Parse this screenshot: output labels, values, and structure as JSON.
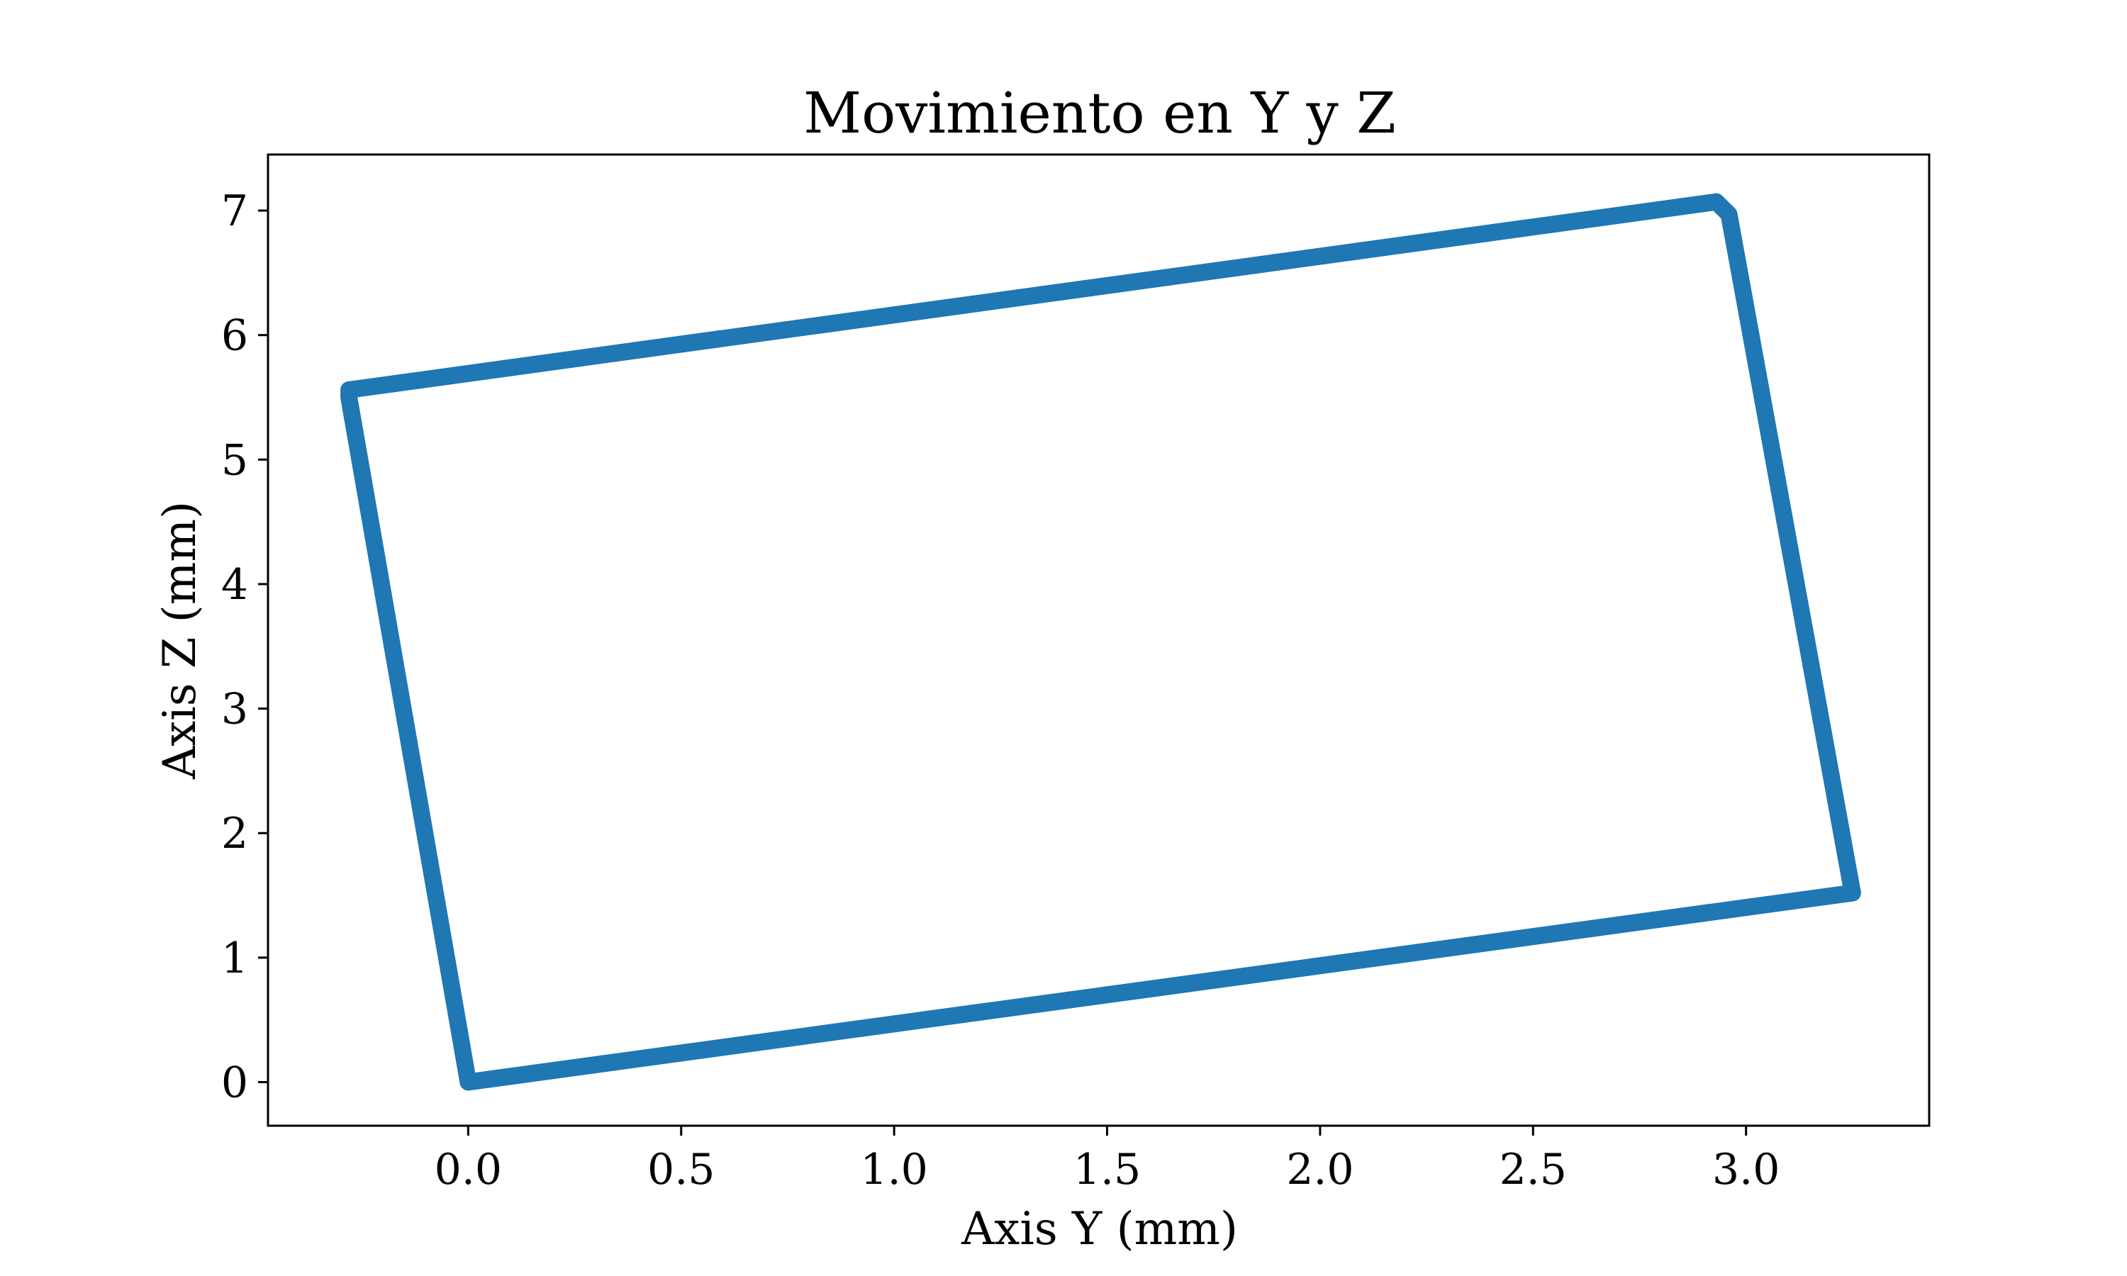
{
  "chart_data": {
    "type": "line",
    "title": "Movimiento en Y y Z",
    "xlabel": "Axis Y (mm)",
    "ylabel": "Axis Z (mm)",
    "xlim": [
      -0.47,
      3.43
    ],
    "ylim": [
      -0.35,
      7.45
    ],
    "xticks": [
      0.0,
      0.5,
      1.0,
      1.5,
      2.0,
      2.5,
      3.0
    ],
    "xtick_labels": [
      "0.0",
      "0.5",
      "1.0",
      "1.5",
      "2.0",
      "2.5",
      "3.0"
    ],
    "yticks": [
      0,
      1,
      2,
      3,
      4,
      5,
      6,
      7
    ],
    "ytick_labels": [
      "0",
      "1",
      "2",
      "3",
      "4",
      "5",
      "6",
      "7"
    ],
    "grid": false,
    "series": [
      {
        "color": "#1f77b4",
        "x": [
          0.0,
          3.25,
          2.96,
          2.93,
          -0.28,
          -0.28,
          0.0
        ],
        "y": [
          0.0,
          1.52,
          6.97,
          7.07,
          5.56,
          5.5,
          0.0
        ]
      }
    ]
  }
}
